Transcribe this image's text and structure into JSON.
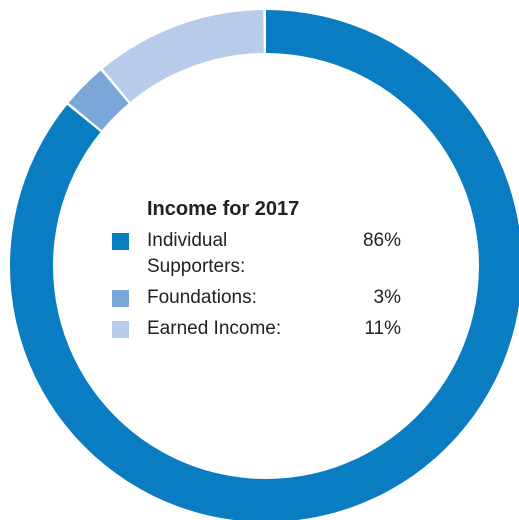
{
  "chart_data": {
    "type": "pie",
    "title": "Income for 2017",
    "categories": [
      "Individual Supporters:",
      "Foundations:",
      "Earned Income:"
    ],
    "values": [
      86,
      3,
      11
    ],
    "value_labels": [
      "86%",
      "3%",
      "11%"
    ],
    "colors": [
      "#0a7cc2",
      "#7aa6d8",
      "#b9cbea"
    ],
    "legend_position": "center"
  }
}
